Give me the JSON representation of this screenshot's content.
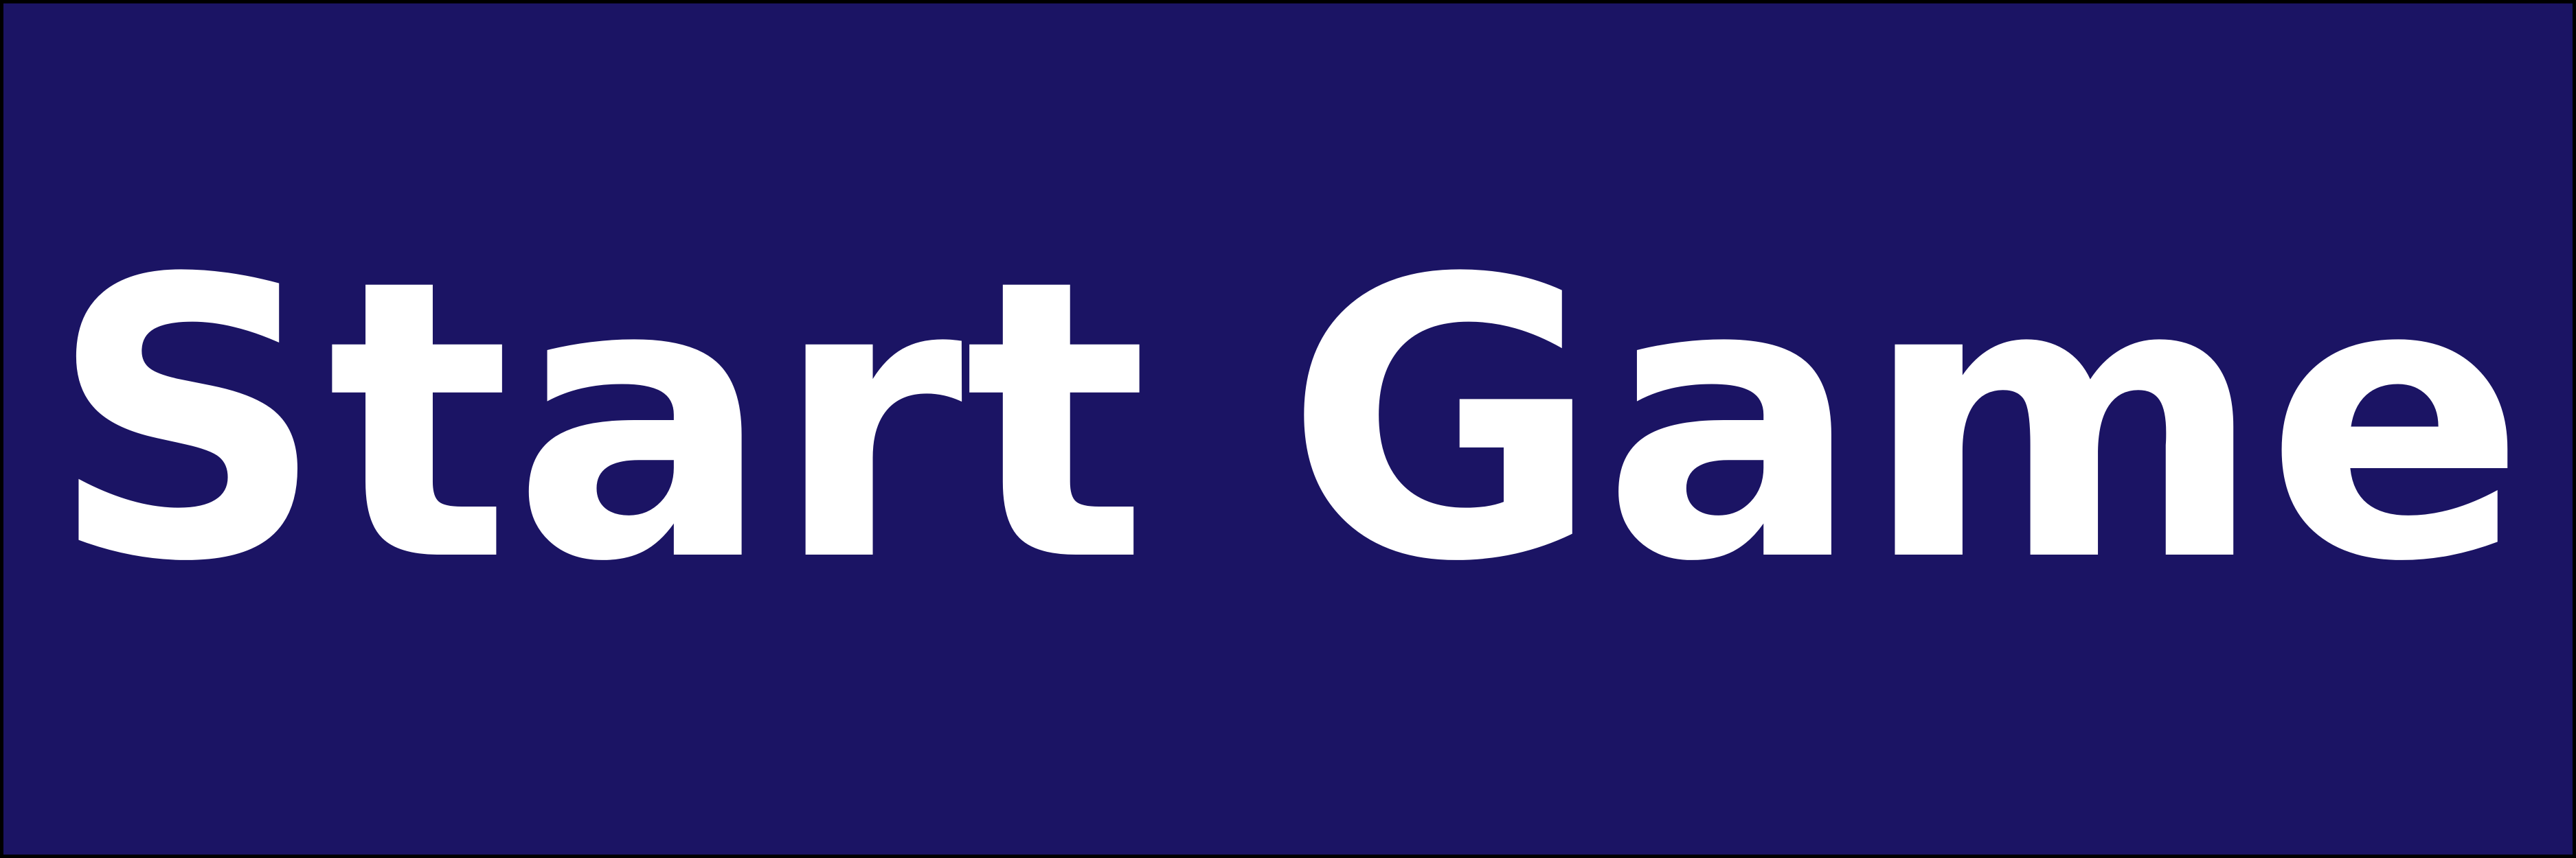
{
  "start_button": {
    "label": "Start Game",
    "background_color": "#1b1464",
    "text_color": "#ffffff"
  }
}
